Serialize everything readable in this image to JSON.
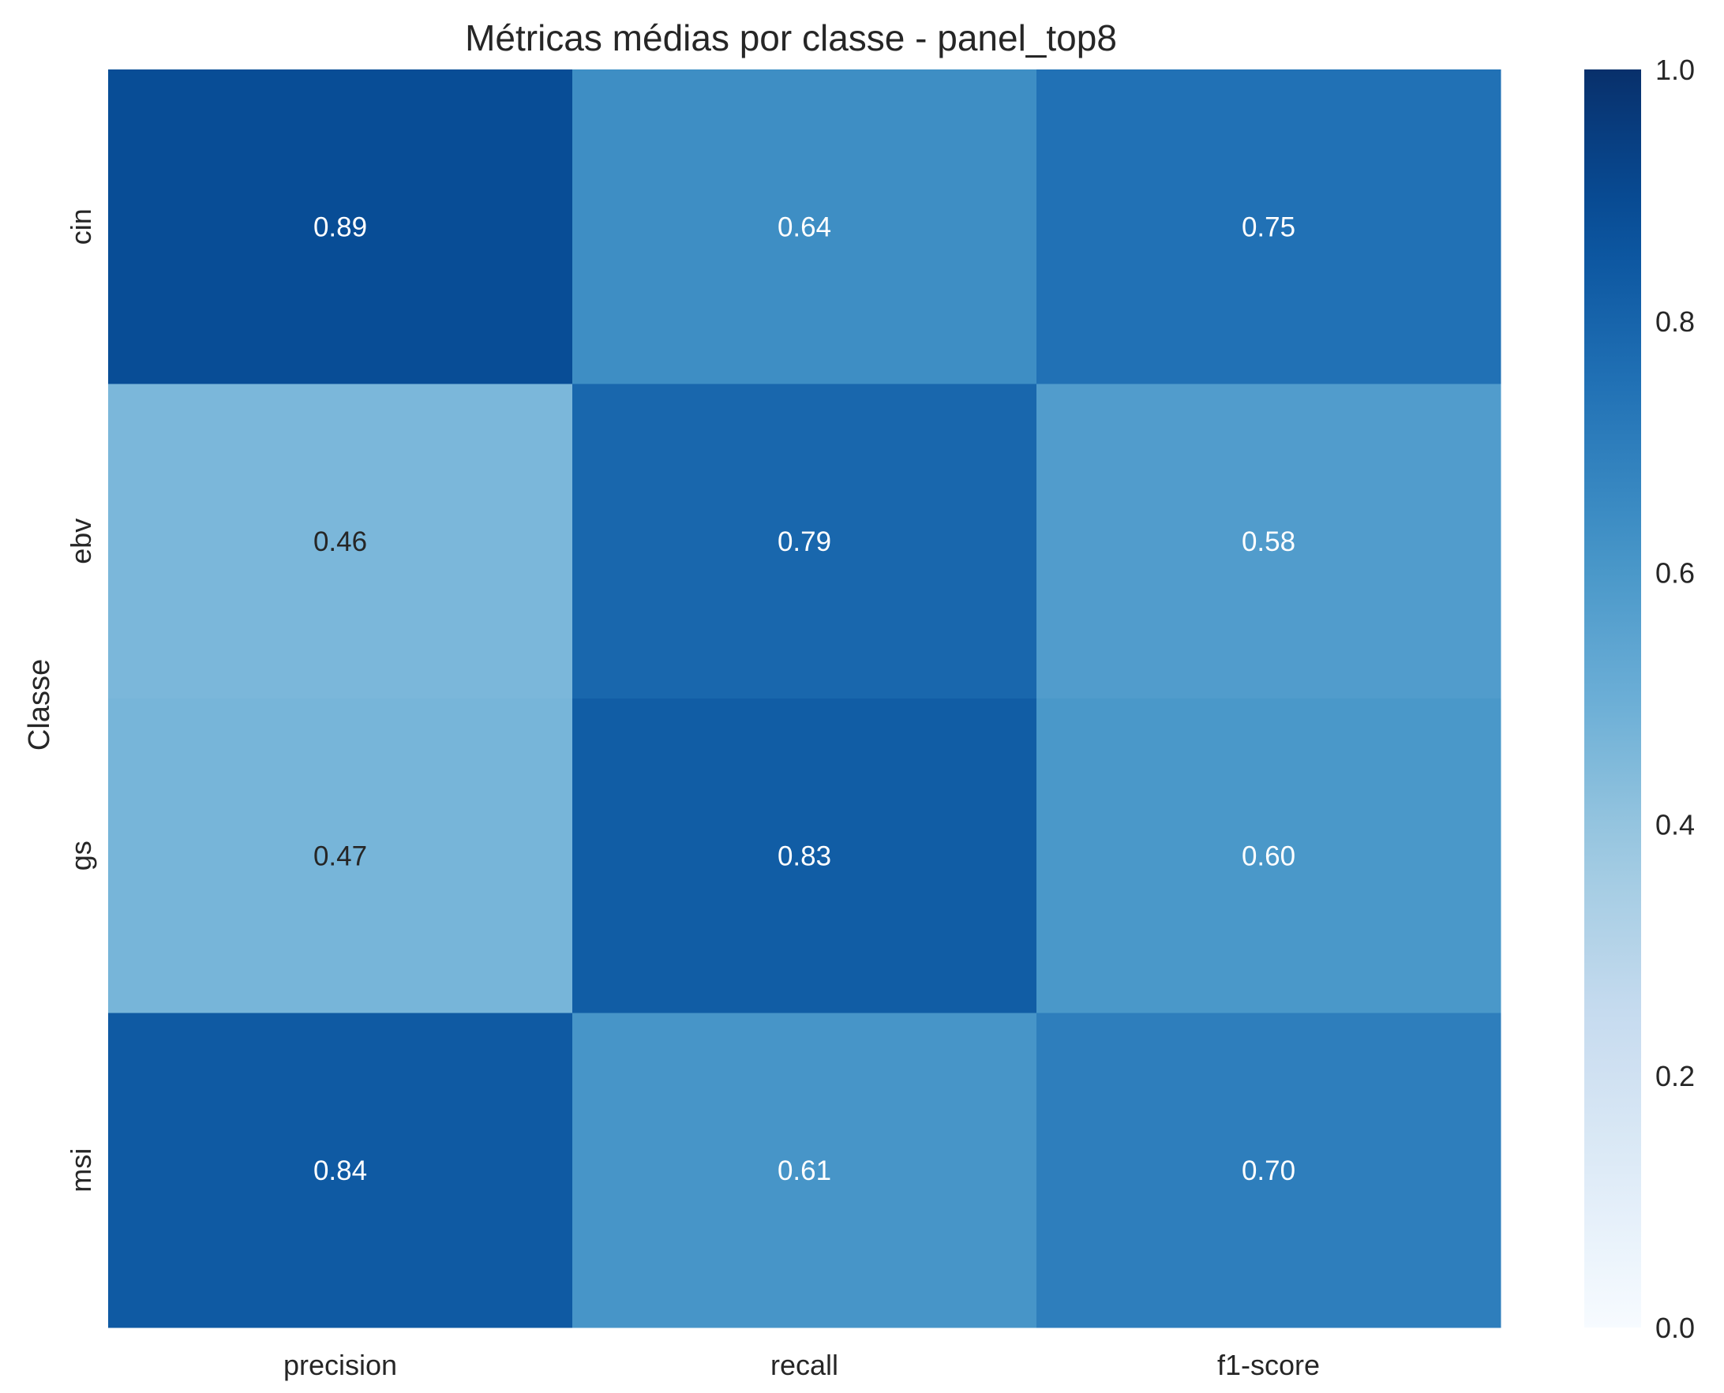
{
  "chart_data": {
    "type": "heatmap",
    "title": "Métricas médias por classe - panel_top8",
    "xlabel": "",
    "ylabel": "Classe",
    "x_categories": [
      "precision",
      "recall",
      "f1-score"
    ],
    "y_categories": [
      "cin",
      "ebv",
      "gs",
      "msi"
    ],
    "values": [
      [
        0.89,
        0.64,
        0.75
      ],
      [
        0.46,
        0.79,
        0.58
      ],
      [
        0.47,
        0.83,
        0.6
      ],
      [
        0.84,
        0.61,
        0.7
      ]
    ],
    "value_labels": [
      [
        "0.89",
        "0.64",
        "0.75"
      ],
      [
        "0.46",
        "0.79",
        "0.58"
      ],
      [
        "0.47",
        "0.83",
        "0.60"
      ],
      [
        "0.84",
        "0.61",
        "0.70"
      ]
    ],
    "colormap": "Blues",
    "vmin": 0.0,
    "vmax": 1.0,
    "colorbar_ticks": [
      "0.0",
      "0.2",
      "0.4",
      "0.6",
      "0.8",
      "1.0"
    ],
    "colorbar_tick_values": [
      0.0,
      0.2,
      0.4,
      0.6,
      0.8,
      1.0
    ],
    "colors": {
      "text_dark": "#262626",
      "text_light": "#ffffff"
    }
  }
}
